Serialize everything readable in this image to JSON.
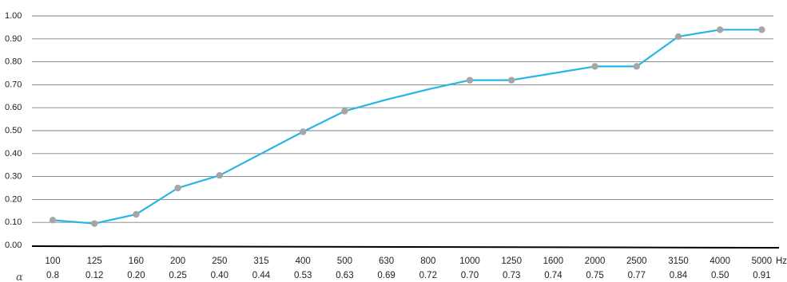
{
  "chart_data": {
    "type": "line",
    "categories": [
      "100",
      "125",
      "160",
      "200",
      "250",
      "315",
      "400",
      "500",
      "630",
      "800",
      "1000",
      "1250",
      "1600",
      "2000",
      "2500",
      "3150",
      "4000",
      "5000"
    ],
    "x_unit": "Hz",
    "series": [
      {
        "values": [
          0.11,
          0.095,
          0.135,
          0.25,
          0.305,
          0.4,
          0.495,
          0.585,
          0.635,
          0.68,
          0.72,
          0.72,
          0.75,
          0.78,
          0.78,
          0.91,
          0.94,
          0.94
        ],
        "markers": [
          0,
          1,
          2,
          3,
          4,
          6,
          7,
          10,
          11,
          13,
          14,
          15,
          16,
          17
        ]
      }
    ],
    "row_symbol": "α",
    "row_values": [
      "0.8",
      "0.12",
      "0.20",
      "0.25",
      "0.40",
      "0.44",
      "0.53",
      "0.63",
      "0.69",
      "0.72",
      "0.70",
      "0.73",
      "0.74",
      "0.75",
      "0.77",
      "0.84",
      "0.50",
      "0.91"
    ],
    "ylim": [
      0,
      1
    ],
    "yticks": [
      "0.00",
      "0.10",
      "0.20",
      "0.30",
      "0.40",
      "0.50",
      "0.60",
      "0.70",
      "0.80",
      "0.90",
      "1.00"
    ],
    "grid": true,
    "colors": {
      "line": "#29b4e5",
      "marker": "#a6a6a6",
      "grid": "#7f7f7f",
      "baseline": "#000000",
      "text": "#222222"
    }
  }
}
